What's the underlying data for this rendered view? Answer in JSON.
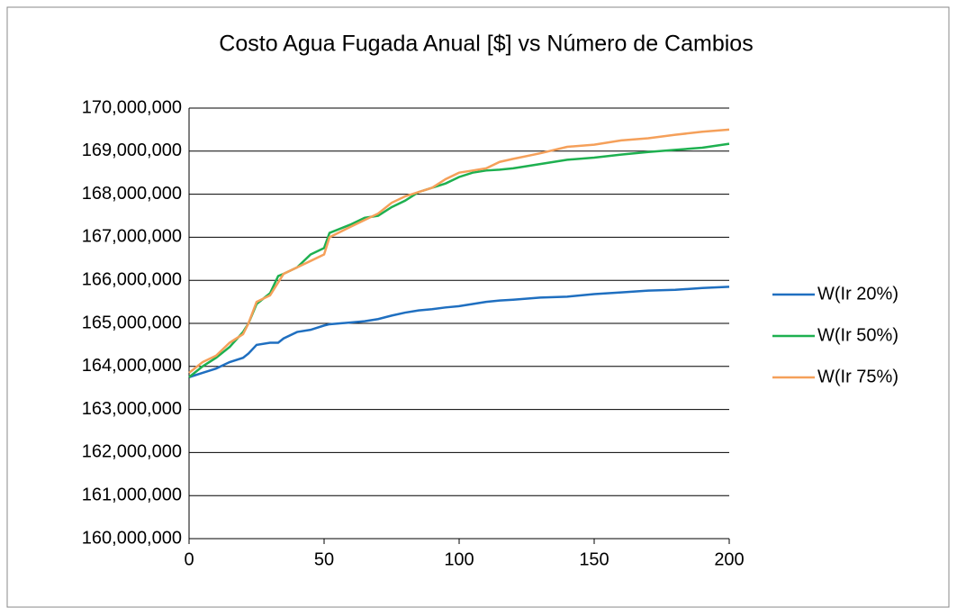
{
  "chart_data": {
    "type": "line",
    "title": "Costo Agua Fugada Anual [$] vs Número de Cambios",
    "x": [
      0,
      5,
      10,
      15,
      20,
      22,
      25,
      30,
      33,
      35,
      40,
      45,
      50,
      52,
      60,
      65,
      70,
      75,
      80,
      85,
      90,
      95,
      100,
      105,
      110,
      115,
      120,
      130,
      140,
      150,
      160,
      170,
      180,
      190,
      200
    ],
    "series": [
      {
        "name": "W(Ir 20%)",
        "color": "#1f6fc0",
        "values": [
          163750000,
          163850000,
          163950000,
          164100000,
          164200000,
          164300000,
          164500000,
          164550000,
          164550000,
          164650000,
          164800000,
          164850000,
          164950000,
          164980000,
          165020000,
          165050000,
          165100000,
          165180000,
          165250000,
          165300000,
          165330000,
          165370000,
          165400000,
          165450000,
          165500000,
          165530000,
          165550000,
          165600000,
          165620000,
          165680000,
          165720000,
          165760000,
          165780000,
          165820000,
          165850000
        ]
      },
      {
        "name": "W(Ir 50%)",
        "color": "#1eb050",
        "values": [
          163750000,
          164000000,
          164200000,
          164450000,
          164800000,
          165000000,
          165450000,
          165700000,
          166100000,
          166150000,
          166300000,
          166600000,
          166750000,
          167100000,
          167300000,
          167450000,
          167500000,
          167700000,
          167850000,
          168050000,
          168150000,
          168250000,
          168400000,
          168500000,
          168550000,
          168570000,
          168600000,
          168700000,
          168800000,
          168850000,
          168920000,
          168980000,
          169030000,
          169080000,
          169170000
        ]
      },
      {
        "name": "W(Ir 75%)",
        "color": "#f5a05a",
        "values": [
          163850000,
          164100000,
          164250000,
          164550000,
          164750000,
          165000000,
          165500000,
          165650000,
          165950000,
          166150000,
          166300000,
          166450000,
          166600000,
          167000000,
          167250000,
          167400000,
          167550000,
          167800000,
          167950000,
          168050000,
          168150000,
          168350000,
          168500000,
          168550000,
          168600000,
          168750000,
          168820000,
          168950000,
          169100000,
          169150000,
          169250000,
          169300000,
          169380000,
          169450000,
          169500000
        ]
      }
    ],
    "xlim": [
      0,
      200
    ],
    "xticks": [
      0,
      50,
      100,
      150,
      200
    ],
    "ylim": [
      160000000,
      170000000
    ],
    "yticks": [
      {
        "value": 160000000,
        "label": "160,000,000"
      },
      {
        "value": 161000000,
        "label": "161,000,000"
      },
      {
        "value": 162000000,
        "label": "162,000,000"
      },
      {
        "value": 163000000,
        "label": "163,000,000"
      },
      {
        "value": 164000000,
        "label": "164,000,000"
      },
      {
        "value": 165000000,
        "label": "165,000,000"
      },
      {
        "value": 166000000,
        "label": "166,000,000"
      },
      {
        "value": 167000000,
        "label": "167,000,000"
      },
      {
        "value": 168000000,
        "label": "168,000,000"
      },
      {
        "value": 169000000,
        "label": "169,000,000"
      },
      {
        "value": 170000000,
        "label": "170,000,000"
      }
    ],
    "grid": true,
    "legend": "right"
  }
}
